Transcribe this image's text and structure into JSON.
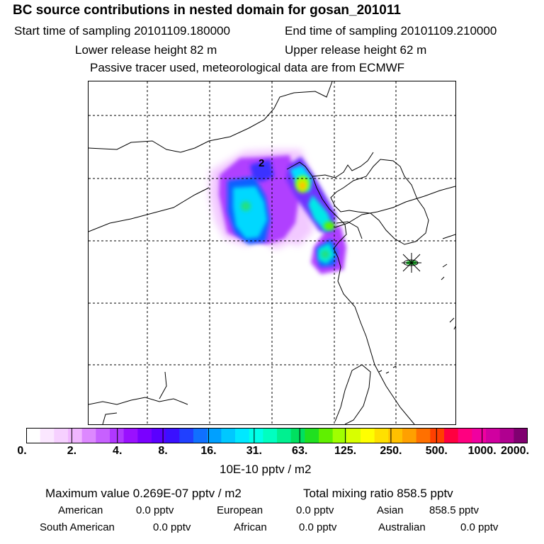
{
  "header": {
    "title": "BC  source contributions in nested domain for gosan_201011",
    "start_time": "Start time of sampling 20101109.180000",
    "end_time": "End time of sampling 20101109.210000",
    "lower_release": "Lower release height   82 m",
    "upper_release": "Upper release height   62 m",
    "note": "Passive tracer used, meteorological data are from ECMWF"
  },
  "chart_data": {
    "type": "heatmap",
    "annotations": [
      "2"
    ],
    "colorbar": {
      "tick_labels": [
        "0.",
        "2.",
        "4.",
        "8.",
        "16.",
        "31.",
        "63.",
        "125.",
        "250.",
        "500.",
        "1000.",
        "2000."
      ],
      "units": "10E-10 pptv / m2",
      "colors": [
        "#ffffff",
        "#fbe7ff",
        "#f6d0ff",
        "#f0b6ff",
        "#dd88ff",
        "#c760ff",
        "#b038ff",
        "#9a10ff",
        "#7a00ff",
        "#5a00ff",
        "#3a10ff",
        "#2040ff",
        "#1070ff",
        "#00a0ff",
        "#00c8ff",
        "#00e8ff",
        "#00ffe8",
        "#00ffc0",
        "#00f090",
        "#00e060",
        "#20e020",
        "#60f000",
        "#a0ff00",
        "#d8ff00",
        "#ffff00",
        "#ffe000",
        "#ffc000",
        "#ffa000",
        "#ff7000",
        "#ff4000",
        "#ff0040",
        "#ff0080",
        "#f000a0",
        "#d000a0",
        "#b00090",
        "#800070"
      ]
    }
  },
  "stats": {
    "max_value": "Maximum value  0.269E-07 pptv / m2",
    "total": "Total mixing ratio     858.5 pptv",
    "american": "American",
    "american_val": "0.0 pptv",
    "european": "European",
    "european_val": "0.0 pptv",
    "asian": "Asian",
    "asian_val": "858.5 pptv",
    "south_american": "South American",
    "south_american_val": "0.0 pptv",
    "african": "African",
    "african_val": "0.0 pptv",
    "australian": "Australian",
    "australian_val": "0.0 pptv"
  }
}
